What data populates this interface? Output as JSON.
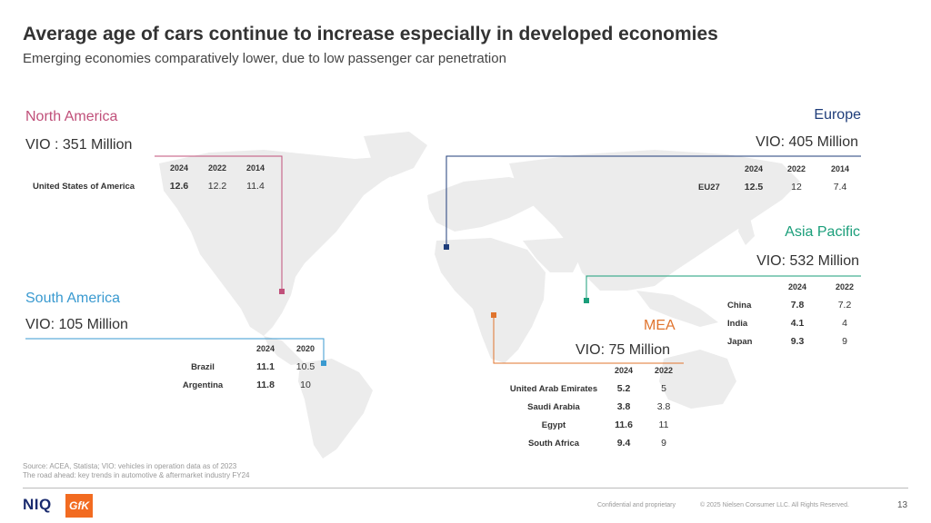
{
  "title": "Average age of cars continue to increase especially in developed economies",
  "subtitle": "Emerging economies comparatively lower, due to low passenger car penetration",
  "regions": {
    "north_america": {
      "name": "North America",
      "color": "#c0507a",
      "vio": "VIO : 351 Million",
      "headers": [
        "2024",
        "2022",
        "2014"
      ],
      "rows": [
        {
          "label": "United States of America",
          "values": [
            "12.6",
            "12.2",
            "11.4"
          ]
        }
      ]
    },
    "europe": {
      "name": "Europe",
      "color": "#1f3d7a",
      "vio": "VIO: 405 Million",
      "headers": [
        "2024",
        "2022",
        "2014"
      ],
      "rows": [
        {
          "label": "EU27",
          "values": [
            "12.5",
            "12",
            "7.4"
          ]
        }
      ]
    },
    "asia_pacific": {
      "name": "Asia Pacific",
      "color": "#1a9e7a",
      "vio": "VIO: 532 Million",
      "headers": [
        "2024",
        "2022"
      ],
      "rows": [
        {
          "label": "China",
          "values": [
            "7.8",
            "7.2"
          ]
        },
        {
          "label": "India",
          "values": [
            "4.1",
            "4"
          ]
        },
        {
          "label": "Japan",
          "values": [
            "9.3",
            "9"
          ]
        }
      ]
    },
    "south_america": {
      "name": "South America",
      "color": "#3a9ad0",
      "vio": "VIO: 105 Million",
      "headers": [
        "2024",
        "2020"
      ],
      "rows": [
        {
          "label": "Brazil",
          "values": [
            "11.1",
            "10.5"
          ]
        },
        {
          "label": "Argentina",
          "values": [
            "11.8",
            "10"
          ]
        }
      ]
    },
    "mea": {
      "name": "MEA",
      "color": "#e0742e",
      "vio": "VIO: 75 Million",
      "headers": [
        "2024",
        "2022"
      ],
      "rows": [
        {
          "label": "United Arab Emirates",
          "values": [
            "5.2",
            "5"
          ]
        },
        {
          "label": "Saudi Arabia",
          "values": [
            "3.8",
            "3.8"
          ]
        },
        {
          "label": "Egypt",
          "values": [
            "11.6",
            "11"
          ]
        },
        {
          "label": "South Africa",
          "values": [
            "9.4",
            "9"
          ]
        }
      ]
    }
  },
  "source_line1": "Source: ACEA, Statista; VIO: vehicles in operation data as of 2023",
  "source_line2": "The road ahead: key trends in automotive & aftermarket industry FY24",
  "footer": {
    "logo_niq": "NIQ",
    "logo_gfk": "GfK",
    "confidential": "Confidential and proprietary",
    "copyright": "© 2025 Nielsen Consumer LLC. All Rights Reserved.",
    "page_number": "13"
  }
}
